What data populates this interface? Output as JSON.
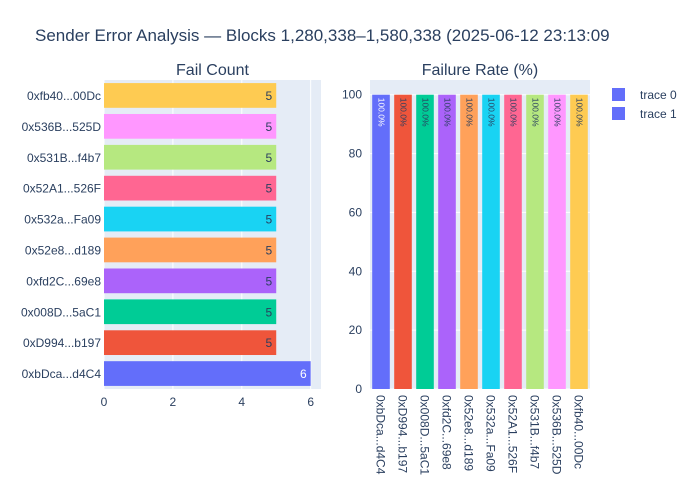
{
  "title": "Sender Error Analysis — Blocks 1,280,338–1,580,338 (2025-06-12 23:13:09",
  "legend": {
    "items": [
      {
        "name": "trace 0",
        "color": "#636efa"
      },
      {
        "name": "trace 1",
        "color": "#636efa"
      }
    ]
  },
  "chart_data": [
    {
      "type": "bar",
      "orientation": "horizontal",
      "title": "Fail Count",
      "categories": [
        "0xbDca...d4C4",
        "0xD994...b197",
        "0x008D...5aC1",
        "0xfd2C...69e8",
        "0x52e8...d189",
        "0x532a...Fa09",
        "0x52A1...526F",
        "0x531B...f4b7",
        "0x536B...525D",
        "0xfb40...00Dc"
      ],
      "values": [
        6,
        5,
        5,
        5,
        5,
        5,
        5,
        5,
        5,
        5
      ],
      "data_labels": [
        "6",
        "5",
        "5",
        "5",
        "5",
        "5",
        "5",
        "5",
        "5",
        "5"
      ],
      "colors": [
        "#636efa",
        "#ef553b",
        "#00cc96",
        "#ab63fa",
        "#ffa15a",
        "#19d3f3",
        "#ff6692",
        "#b6e880",
        "#ff97ff",
        "#fecb52"
      ],
      "xlim": [
        0,
        6.3
      ],
      "xticks": [
        0,
        2,
        4,
        6
      ],
      "grid": true
    },
    {
      "type": "bar",
      "orientation": "vertical",
      "title": "Failure Rate (%)",
      "categories": [
        "0xbDca...d4C4",
        "0xD994...b197",
        "0x008D...5aC1",
        "0xfd2C...69e8",
        "0x52e8...d189",
        "0x532a...Fa09",
        "0x52A1...526F",
        "0x531B...f4b7",
        "0x536B...525D",
        "0xfb40...00Dc"
      ],
      "values": [
        100,
        100,
        100,
        100,
        100,
        100,
        100,
        100,
        100,
        100
      ],
      "data_labels": [
        "100.0%",
        "100.0%",
        "100.0%",
        "100.0%",
        "100.0%",
        "100.0%",
        "100.0%",
        "100.0%",
        "100.0%",
        "100.0%"
      ],
      "colors": [
        "#636efa",
        "#ef553b",
        "#00cc96",
        "#ab63fa",
        "#ffa15a",
        "#19d3f3",
        "#ff6692",
        "#b6e880",
        "#ff97ff",
        "#fecb52"
      ],
      "ylim": [
        0,
        105
      ],
      "yticks": [
        0,
        20,
        40,
        60,
        80,
        100
      ],
      "grid": true
    }
  ]
}
